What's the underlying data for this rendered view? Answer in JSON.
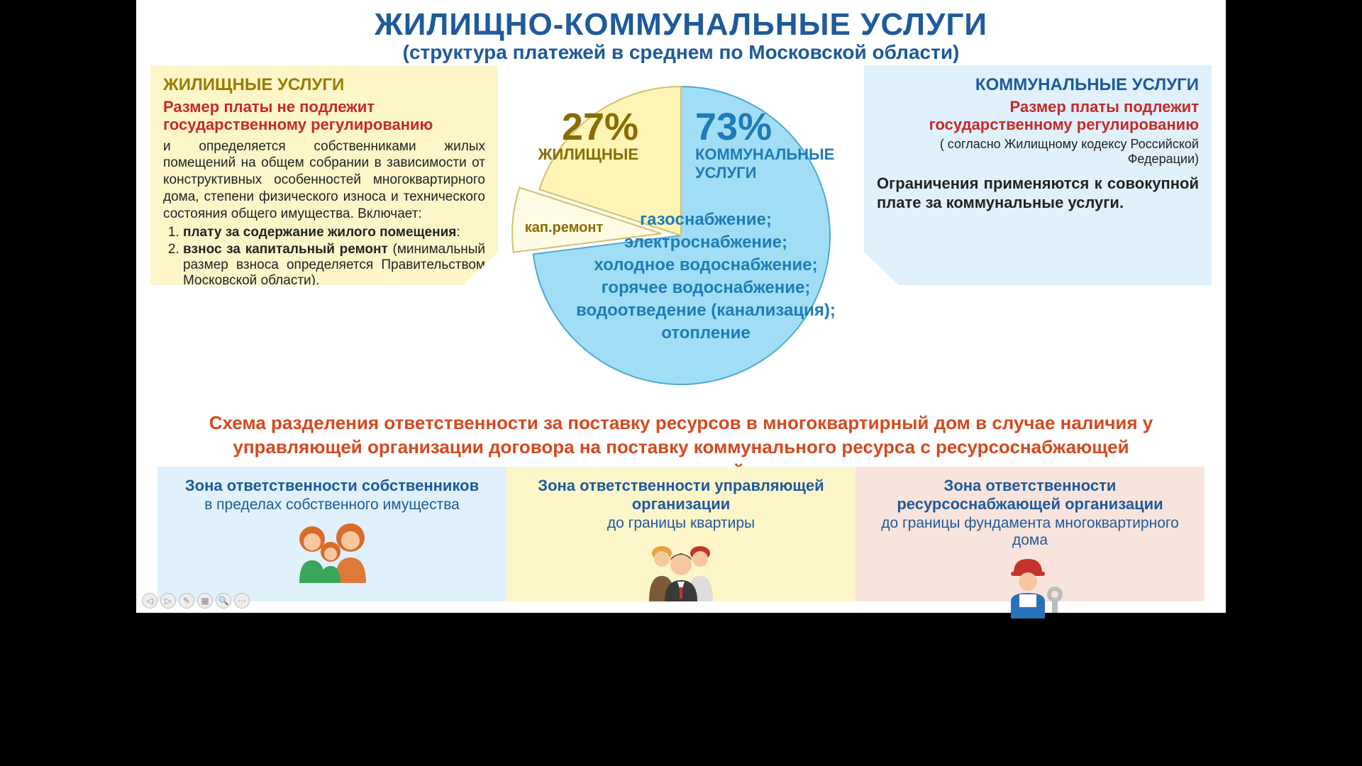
{
  "colors": {
    "title": "#1e5a9c",
    "warn": "#c62a28",
    "accent_left": "#8a6d00",
    "accent_right": "#1e7bb8",
    "panel_left_bg": "#fdf6c9",
    "panel_right_bg": "#e0f1fc",
    "scheme_title": "#d34a1f",
    "zone_bgs": [
      "#e0f1fc",
      "#fdf6c9",
      "#f8e4dc"
    ]
  },
  "header": {
    "title": "ЖИЛИЩНО-КОММУНАЛЬНЫЕ УСЛУГИ",
    "subtitle": "(структура платежей  в среднем по Московской области)"
  },
  "left_panel": {
    "heading": "ЖИЛИЩНЫЕ  УСЛУГИ",
    "warn": "Размер платы не подлежит государственному регулированию",
    "body": "и определяется собственниками жилых помещений на общем собрании в зависимости от конструктивных особенностей многоквартирного дома, степени физического износа и технического состояния общего имущества. Включает:",
    "items": [
      {
        "bold": "плату за содержание жилого помещения",
        "tail": ":"
      },
      {
        "bold": "взнос за капитальный ремонт",
        "tail": " (минимальный размер взноса определяется Правительством Московской области)."
      }
    ]
  },
  "right_panel": {
    "heading": "КОММУНАЛЬНЫЕ УСЛУГИ",
    "warn": "Размер платы подлежит государственному регулированию",
    "note": "( согласно Жилищному кодексу Российской Федерации)",
    "body": "Ограничения применяются к совокупной плате за коммунальные услуги."
  },
  "pie": {
    "type": "pie_with_pullout",
    "radius": 210,
    "slices": [
      {
        "label": "КОММУНАЛЬНЫЕ УСЛУГИ",
        "percent": 73,
        "color": "#a1def5",
        "stroke": "#4da8d8"
      },
      {
        "label": "ЖИЛИЩНЫЕ",
        "percent": 20,
        "color": "#fdf4b5",
        "stroke": "#cfc26a"
      },
      {
        "label": "кап.ремонт",
        "percent": 7,
        "color": "#fffce6",
        "stroke": "#cfc26a",
        "pulled": true,
        "pull_dist": 28
      }
    ],
    "left_pct_text": "27%",
    "left_label": "ЖИЛИЩНЫЕ",
    "right_pct_text": "73%",
    "right_label_l1": "КОММУНАЛЬНЫЕ",
    "right_label_l2": "УСЛУГИ",
    "kap_label": "кап.ремонт",
    "services": [
      "газоснабжение;",
      "электроснабжение;",
      "холодное водоснабжение;",
      "горячее водоснабжение;",
      "водоотведение (канализация);",
      "отопление"
    ]
  },
  "scheme_title_l1": "Схема разделения ответственности за поставку ресурсов в многоквартирный дом в случае наличия у",
  "scheme_title_l2": "управляющей организации договора на поставку коммунального ресурса с ресурсоснабжающей организацией",
  "zones": [
    {
      "heading": "Зона ответственности собственников",
      "sub": "в пределах собственного имущества"
    },
    {
      "heading": "Зона ответственности управляющей организации",
      "sub": "до границы квартиры"
    },
    {
      "heading": "Зона ответственности ресурсоснабжающей организации",
      "sub": "до границы фундамента многоквартирного дома"
    }
  ],
  "nav": [
    "◁",
    "▷",
    "✎",
    "▦",
    "🔍",
    "⋯"
  ]
}
